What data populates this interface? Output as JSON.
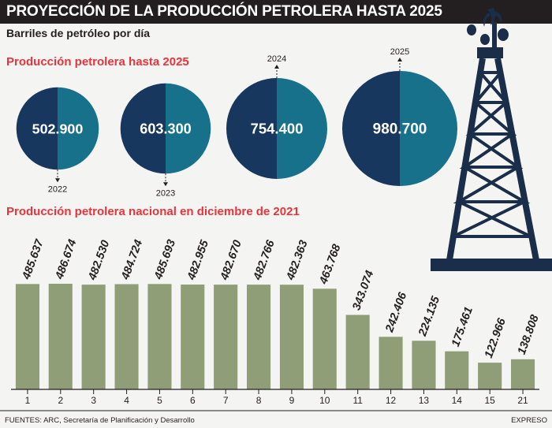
{
  "title": "PROYECCIÓN DE LA PRODUCCIÓN PETROLERA HASTA 2025",
  "subtitle": "Barriles de petróleo por día",
  "section_projection": "Producción petrolera hasta 2025",
  "section_national": "Producción petrolera nacional en diciembre de 2021",
  "footer": {
    "source": "FUENTES: ARC, Secretaría de Planificación y Desarrollo",
    "brand": "EXPRESO"
  },
  "colors": {
    "circle_dark": "#17375e",
    "circle_light": "#17718a",
    "bar": "#8f9e77",
    "accent_red": "#e8343a",
    "header_bg": "#231f20",
    "tower": "#1a2e4a"
  },
  "icon": "oil-derrick-icon",
  "chart_data": [
    {
      "type": "bubble",
      "categories": [
        "2022",
        "2023",
        "2024",
        "2025"
      ],
      "values": [
        502900,
        603300,
        754400,
        980700
      ],
      "value_labels": [
        "502.900",
        "603.300",
        "754.400",
        "980.700"
      ]
    },
    {
      "type": "bar",
      "categories": [
        "1",
        "2",
        "3",
        "4",
        "5",
        "6",
        "7",
        "8",
        "9",
        "10",
        "11",
        "12",
        "13",
        "14",
        "15",
        "21"
      ],
      "values": [
        485637,
        486674,
        482530,
        484724,
        485693,
        482955,
        482670,
        482766,
        482363,
        463768,
        343074,
        242406,
        224135,
        175461,
        122966,
        138808
      ],
      "value_labels": [
        "485.637",
        "486.674",
        "482.530",
        "484.724",
        "485.693",
        "482.955",
        "482.670",
        "482.766",
        "482.363",
        "463.768",
        "343.074",
        "242.406",
        "224.135",
        "175.461",
        "122.966",
        "138.808"
      ]
    }
  ]
}
